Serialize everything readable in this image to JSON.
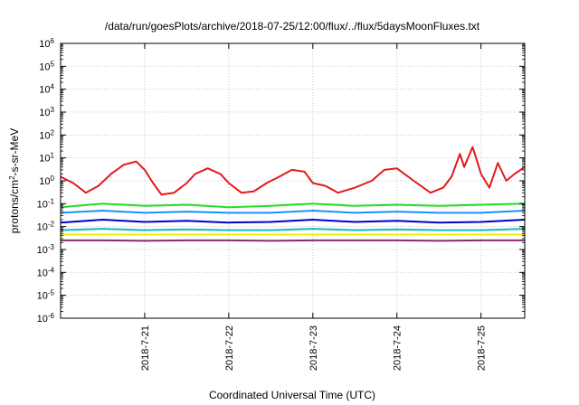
{
  "chart_data": {
    "type": "line",
    "title": "/data/run/goesPlots/archive/2018-07-25/12:00/flux/../flux/5daysMoonFluxes.txt",
    "xlabel": "Coordinated Universal Time (UTC)",
    "ylabel": "protons/cm2-s-sr-MeV",
    "yscale": "log",
    "ylim": [
      1e-06,
      1000000
    ],
    "xlim": [
      0,
      5.52
    ],
    "grid": true,
    "x_tick_positions": [
      1,
      2,
      3,
      4,
      5
    ],
    "x_tick_labels": [
      "2018-7-21",
      "2018-7-22",
      "2018-7-23",
      "2018-7-24",
      "2018-7-25"
    ],
    "y_tick_exponents": [
      -6,
      -5,
      -4,
      -3,
      -2,
      -1,
      0,
      1,
      2,
      3,
      4,
      5,
      6
    ],
    "series": [
      {
        "color": "#e31a1c",
        "x": [
          0,
          0.15,
          0.3,
          0.45,
          0.6,
          0.75,
          0.9,
          1.0,
          1.1,
          1.2,
          1.35,
          1.5,
          1.6,
          1.75,
          1.9,
          2.0,
          2.15,
          2.3,
          2.45,
          2.6,
          2.75,
          2.9,
          3.0,
          3.15,
          3.3,
          3.5,
          3.7,
          3.85,
          4.0,
          4.2,
          4.4,
          4.55,
          4.65,
          4.75,
          4.8,
          4.9,
          4.95,
          5.0,
          5.1,
          5.2,
          5.3,
          5.4,
          5.52
        ],
        "y": [
          1.5,
          0.8,
          0.3,
          0.6,
          2.0,
          5.0,
          7.0,
          3.0,
          0.8,
          0.25,
          0.3,
          0.8,
          2.0,
          3.5,
          2.0,
          0.8,
          0.3,
          0.35,
          0.8,
          1.5,
          3.0,
          2.5,
          0.8,
          0.6,
          0.3,
          0.5,
          1.0,
          3.0,
          3.5,
          1.0,
          0.3,
          0.5,
          1.5,
          15.0,
          4.0,
          30.0,
          8.0,
          2.0,
          0.5,
          6.0,
          1.0,
          2.0,
          4.0
        ]
      },
      {
        "color": "#22dd22",
        "x": [
          0,
          0.5,
          1.0,
          1.5,
          2.0,
          2.5,
          3.0,
          3.5,
          4.0,
          4.5,
          5.0,
          5.52
        ],
        "y": [
          0.07,
          0.1,
          0.08,
          0.09,
          0.07,
          0.08,
          0.1,
          0.08,
          0.09,
          0.08,
          0.09,
          0.1
        ]
      },
      {
        "color": "#1a90ff",
        "x": [
          0,
          0.5,
          1.0,
          1.5,
          2.0,
          2.5,
          3.0,
          3.5,
          4.0,
          4.5,
          5.0,
          5.52
        ],
        "y": [
          0.04,
          0.05,
          0.04,
          0.045,
          0.04,
          0.04,
          0.05,
          0.04,
          0.045,
          0.04,
          0.04,
          0.05
        ]
      },
      {
        "color": "#0000cc",
        "x": [
          0,
          0.5,
          1.0,
          1.5,
          2.0,
          2.5,
          3.0,
          3.5,
          4.0,
          4.5,
          5.0,
          5.52
        ],
        "y": [
          0.015,
          0.02,
          0.016,
          0.018,
          0.015,
          0.016,
          0.02,
          0.016,
          0.018,
          0.015,
          0.016,
          0.02
        ]
      },
      {
        "color": "#18b8b8",
        "x": [
          0,
          0.5,
          1.0,
          1.5,
          2.0,
          2.5,
          3.0,
          3.5,
          4.0,
          4.5,
          5.0,
          5.52
        ],
        "y": [
          0.007,
          0.008,
          0.007,
          0.0075,
          0.007,
          0.007,
          0.008,
          0.007,
          0.0075,
          0.007,
          0.007,
          0.008
        ]
      },
      {
        "color": "#eeee00",
        "x": [
          0,
          0.5,
          1.0,
          1.5,
          2.0,
          2.5,
          3.0,
          3.5,
          4.0,
          4.5,
          5.0,
          5.52
        ],
        "y": [
          0.0045,
          0.0045,
          0.0045,
          0.0045,
          0.0045,
          0.0045,
          0.0045,
          0.0045,
          0.0045,
          0.0045,
          0.0045,
          0.0045
        ]
      },
      {
        "color": "#8b2a6b",
        "x": [
          0,
          0.5,
          1.0,
          1.5,
          2.0,
          2.5,
          3.0,
          3.5,
          4.0,
          4.5,
          5.0,
          5.52
        ],
        "y": [
          0.0025,
          0.0025,
          0.0024,
          0.0025,
          0.0025,
          0.0024,
          0.0025,
          0.0025,
          0.0025,
          0.0024,
          0.0025,
          0.0025
        ]
      }
    ]
  }
}
